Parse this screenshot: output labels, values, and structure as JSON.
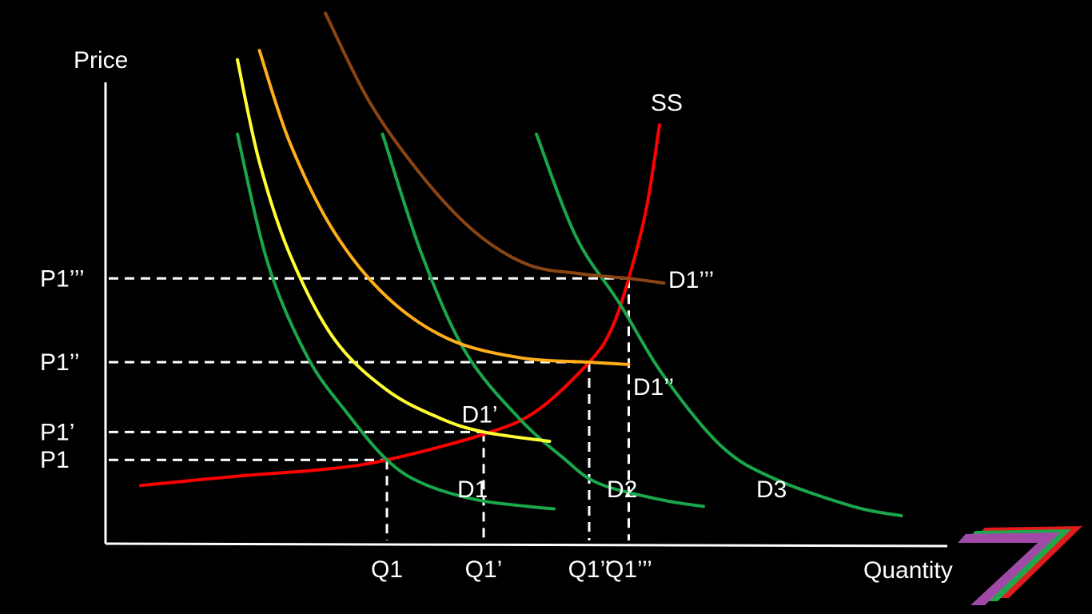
{
  "chart_data": {
    "type": "line",
    "title": "",
    "xlabel": "Quantity",
    "ylabel": "Price",
    "xlim": [
      0,
      10
    ],
    "ylim": [
      0,
      10
    ],
    "grid": false,
    "x_ticks": [
      {
        "label": "Q1",
        "value": 3.2
      },
      {
        "label": "Q1’",
        "value": 4.3
      },
      {
        "label": "Q1’’",
        "value": 5.5
      },
      {
        "label": "Q1’’’",
        "value": 5.95
      }
    ],
    "y_ticks": [
      {
        "label": "P1",
        "value": 1.8
      },
      {
        "label": "P1’",
        "value": 2.4
      },
      {
        "label": "P1’’",
        "value": 3.9
      },
      {
        "label": "P1’’’",
        "value": 5.7
      }
    ],
    "series": [
      {
        "name": "SS",
        "color": "#ff0000",
        "points": [
          [
            0.4,
            1.25
          ],
          [
            1.5,
            1.45
          ],
          [
            2.5,
            1.6
          ],
          [
            3.2,
            1.8
          ],
          [
            4.3,
            2.35
          ],
          [
            4.9,
            2.85
          ],
          [
            5.5,
            3.9
          ],
          [
            5.75,
            4.6
          ],
          [
            5.95,
            5.7
          ],
          [
            6.15,
            7.2
          ],
          [
            6.3,
            9.0
          ]
        ]
      },
      {
        "name": "D1",
        "color": "#1aa64a",
        "points": [
          [
            1.5,
            8.8
          ],
          [
            1.85,
            6.0
          ],
          [
            2.3,
            4.0
          ],
          [
            2.75,
            2.8
          ],
          [
            3.2,
            1.8
          ],
          [
            3.6,
            1.3
          ],
          [
            4.2,
            0.95
          ],
          [
            4.8,
            0.8
          ],
          [
            5.1,
            0.75
          ]
        ]
      },
      {
        "name": "D2",
        "color": "#1aa64a",
        "points": [
          [
            3.15,
            8.8
          ],
          [
            3.6,
            6.2
          ],
          [
            4.1,
            4.1
          ],
          [
            4.7,
            2.7
          ],
          [
            5.2,
            1.85
          ],
          [
            5.6,
            1.3
          ],
          [
            6.3,
            0.95
          ],
          [
            6.8,
            0.8
          ]
        ]
      },
      {
        "name": "D3",
        "color": "#1aa64a",
        "points": [
          [
            4.9,
            8.8
          ],
          [
            5.35,
            6.6
          ],
          [
            5.85,
            5.15
          ],
          [
            6.35,
            3.6
          ],
          [
            7.0,
            2.1
          ],
          [
            7.6,
            1.4
          ],
          [
            8.5,
            0.8
          ],
          [
            9.05,
            0.6
          ]
        ]
      },
      {
        "name": "D1’",
        "color": "#ffff33",
        "points": [
          [
            1.5,
            10.4
          ],
          [
            1.75,
            8.2
          ],
          [
            2.1,
            6.2
          ],
          [
            2.6,
            4.4
          ],
          [
            3.2,
            3.3
          ],
          [
            3.8,
            2.7
          ],
          [
            4.3,
            2.4
          ],
          [
            5.05,
            2.2
          ]
        ]
      },
      {
        "name": "D1’’",
        "color": "#ffae1a",
        "points": [
          [
            1.75,
            10.6
          ],
          [
            2.1,
            8.6
          ],
          [
            2.6,
            6.7
          ],
          [
            3.2,
            5.3
          ],
          [
            3.9,
            4.4
          ],
          [
            4.7,
            4.0
          ],
          [
            5.5,
            3.9
          ],
          [
            5.95,
            3.85
          ]
        ]
      },
      {
        "name": "D1’’’",
        "color": "#8b4513",
        "points": [
          [
            2.5,
            11.4
          ],
          [
            3.0,
            9.5
          ],
          [
            3.6,
            7.9
          ],
          [
            4.2,
            6.7
          ],
          [
            4.8,
            6.0
          ],
          [
            5.4,
            5.8
          ],
          [
            5.95,
            5.7
          ],
          [
            6.35,
            5.6
          ]
        ]
      }
    ],
    "annotations": [
      {
        "text": "SS",
        "x": 6.2,
        "y": 9.3
      },
      {
        "text": "D1’’’",
        "x": 6.4,
        "y": 5.5
      },
      {
        "text": "D1’’",
        "x": 6.0,
        "y": 3.2
      },
      {
        "text": "D1’",
        "x": 4.05,
        "y": 2.6
      },
      {
        "text": "D1",
        "x": 4.0,
        "y": 1.0
      },
      {
        "text": "D2",
        "x": 5.7,
        "y": 1.0
      },
      {
        "text": "D3",
        "x": 7.4,
        "y": 1.0
      }
    ],
    "equilibria": [
      {
        "x": 3.2,
        "y": 1.8
      },
      {
        "x": 4.3,
        "y": 2.4
      },
      {
        "x": 5.5,
        "y": 3.9
      },
      {
        "x": 5.95,
        "y": 5.7
      }
    ]
  },
  "logo": {
    "name": "brand-7-logo",
    "colors": [
      "#a04aa8",
      "#1fa84a",
      "#e31b1b"
    ]
  }
}
